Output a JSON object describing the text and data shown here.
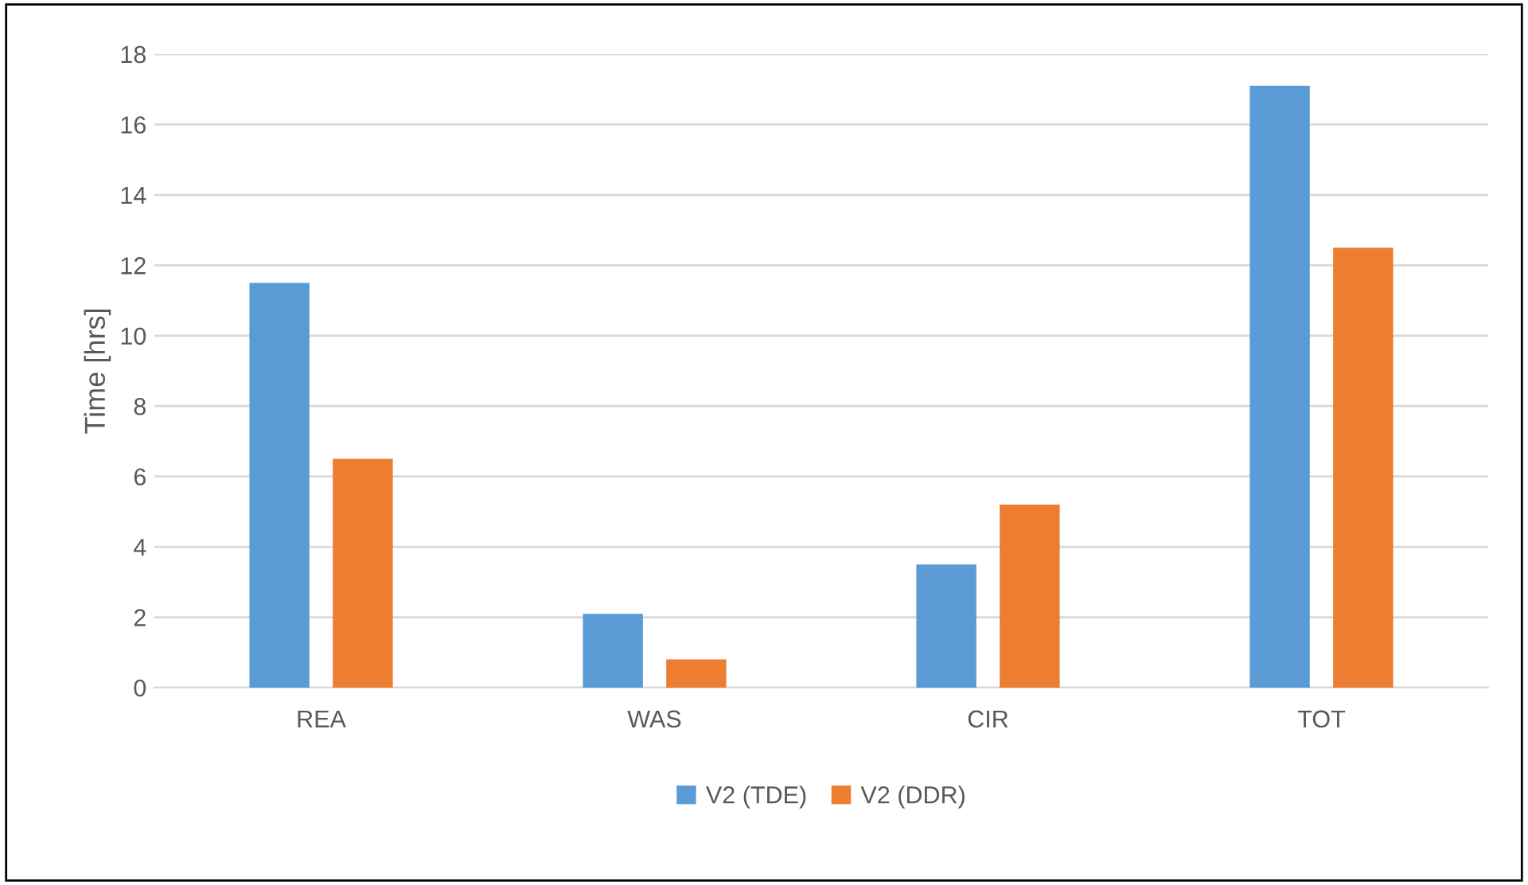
{
  "chart_data": {
    "type": "bar",
    "ylabel": "Time [hrs]",
    "categories": [
      "REA",
      "WAS",
      "CIR",
      "TOT"
    ],
    "series": [
      {
        "name": "V2 (TDE)",
        "color": "#5b9bd5",
        "values": [
          11.5,
          2.1,
          3.5,
          17.1
        ]
      },
      {
        "name": "V2 (DDR)",
        "color": "#ed7d31",
        "values": [
          6.5,
          0.8,
          5.2,
          12.5
        ]
      }
    ],
    "ylim": [
      0,
      18
    ],
    "yticks": [
      0,
      2,
      4,
      6,
      8,
      10,
      12,
      14,
      16,
      18
    ],
    "grid": "y",
    "legend": "bottom"
  }
}
